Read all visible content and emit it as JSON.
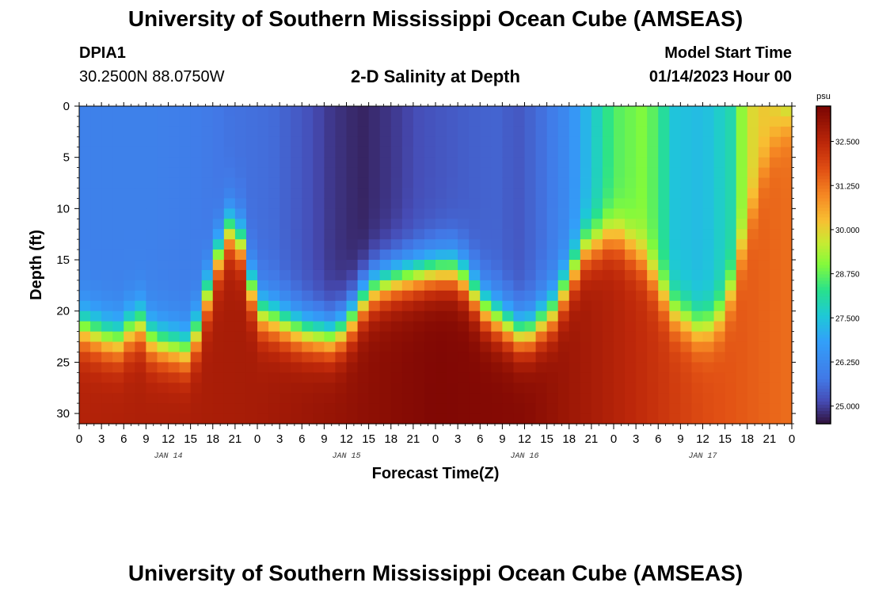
{
  "title_top": "University of Southern Mississippi Ocean Cube (AMSEAS)",
  "title_bottom": "University of Southern Mississippi Ocean Cube (AMSEAS)",
  "station": {
    "id": "DPIA1",
    "coords": "30.2500N  88.0750W"
  },
  "model_start": {
    "label": "Model Start Time",
    "value": "01/14/2023 Hour 00"
  },
  "chart_data": {
    "type": "heatmap",
    "title": "2-D Salinity at Depth",
    "xlabel": "Forecast Time(Z)",
    "ylabel": "Depth (ft)",
    "x_hours": [
      0,
      3,
      6,
      9,
      12,
      15,
      18,
      21,
      24,
      27,
      30,
      33,
      36,
      39,
      42,
      45,
      48,
      51,
      54,
      57,
      60,
      63,
      66,
      69,
      72,
      75,
      78,
      81,
      84,
      87,
      90,
      93,
      96
    ],
    "x_tick_labels": [
      "0",
      "3",
      "6",
      "9",
      "12",
      "15",
      "18",
      "21",
      "0",
      "3",
      "6",
      "9",
      "12",
      "15",
      "18",
      "21",
      "0",
      "3",
      "6",
      "9",
      "12",
      "15",
      "18",
      "21",
      "0",
      "3",
      "6",
      "9",
      "12",
      "15",
      "18",
      "21",
      "0"
    ],
    "day_labels": [
      {
        "hour": 12,
        "text": "JAN 14"
      },
      {
        "hour": 36,
        "text": "JAN 15"
      },
      {
        "hour": 60,
        "text": "JAN 16"
      },
      {
        "hour": 84,
        "text": "JAN 17"
      }
    ],
    "xlim": [
      0,
      96
    ],
    "ylim": [
      0,
      31
    ],
    "y_ticks": [
      0,
      5,
      10,
      15,
      20,
      25,
      30
    ],
    "y_tick_labels": [
      "0",
      "5",
      "10",
      "15",
      "20",
      "25",
      "30"
    ],
    "colorbar": {
      "unit": "psu",
      "range": [
        24.5,
        33.5
      ],
      "ticks": [
        25.0,
        26.25,
        27.5,
        28.75,
        30.0,
        31.25,
        32.5
      ],
      "tick_labels": [
        "25.000",
        "26.250",
        "27.500",
        "28.750",
        "30.000",
        "31.250",
        "32.500"
      ]
    },
    "surface_salinity": [
      {
        "hour": 0,
        "value": 26.0
      },
      {
        "hour": 10,
        "value": 26.0
      },
      {
        "hour": 16,
        "value": 25.9
      },
      {
        "hour": 20,
        "value": 25.7
      },
      {
        "hour": 26,
        "value": 25.6
      },
      {
        "hour": 30,
        "value": 25.3
      },
      {
        "hour": 34,
        "value": 24.9
      },
      {
        "hour": 38,
        "value": 24.7
      },
      {
        "hour": 42,
        "value": 24.9
      },
      {
        "hour": 46,
        "value": 25.2
      },
      {
        "hour": 52,
        "value": 25.4
      },
      {
        "hour": 56,
        "value": 25.5
      },
      {
        "hour": 59,
        "value": 25.3
      },
      {
        "hour": 62,
        "value": 25.6
      },
      {
        "hour": 66,
        "value": 26.3
      },
      {
        "hour": 69,
        "value": 27.5
      },
      {
        "hour": 72,
        "value": 28.6
      },
      {
        "hour": 76,
        "value": 29.0
      },
      {
        "hour": 78,
        "value": 28.5
      },
      {
        "hour": 80,
        "value": 27.5
      },
      {
        "hour": 84,
        "value": 27.3
      },
      {
        "hour": 88,
        "value": 28.0
      },
      {
        "hour": 90,
        "value": 29.8
      },
      {
        "hour": 93,
        "value": 30.2
      },
      {
        "hour": 96,
        "value": 29.0
      }
    ],
    "halocline_depth_ft": [
      {
        "hour": 0,
        "value": 21.5
      },
      {
        "hour": 5,
        "value": 23.0
      },
      {
        "hour": 8,
        "value": 21.0
      },
      {
        "hour": 10,
        "value": 23.0
      },
      {
        "hour": 15,
        "value": 24.0
      },
      {
        "hour": 19,
        "value": 14.0
      },
      {
        "hour": 21,
        "value": 11.0
      },
      {
        "hour": 24,
        "value": 20.0
      },
      {
        "hour": 30,
        "value": 22.0
      },
      {
        "hour": 34,
        "value": 22.5
      },
      {
        "hour": 36,
        "value": 21.5
      },
      {
        "hour": 39,
        "value": 18.0
      },
      {
        "hour": 42,
        "value": 17.0
      },
      {
        "hour": 48,
        "value": 16.0
      },
      {
        "hour": 51,
        "value": 16.0
      },
      {
        "hour": 55,
        "value": 20.0
      },
      {
        "hour": 60,
        "value": 22.5
      },
      {
        "hour": 64,
        "value": 20.0
      },
      {
        "hour": 68,
        "value": 14.0
      },
      {
        "hour": 72,
        "value": 12.5
      },
      {
        "hour": 76,
        "value": 15.0
      },
      {
        "hour": 80,
        "value": 20.0
      },
      {
        "hour": 84,
        "value": 22.0
      },
      {
        "hour": 87,
        "value": 20.0
      },
      {
        "hour": 90,
        "value": 12.0
      },
      {
        "hour": 93,
        "value": 4.0
      },
      {
        "hour": 96,
        "value": 1.0
      }
    ],
    "bottom_salinity": [
      {
        "hour": 0,
        "value": 32.6
      },
      {
        "hour": 24,
        "value": 32.8
      },
      {
        "hour": 48,
        "value": 33.4
      },
      {
        "hour": 60,
        "value": 33.3
      },
      {
        "hour": 72,
        "value": 32.6
      },
      {
        "hour": 84,
        "value": 31.8
      },
      {
        "hour": 96,
        "value": 31.3
      }
    ]
  }
}
